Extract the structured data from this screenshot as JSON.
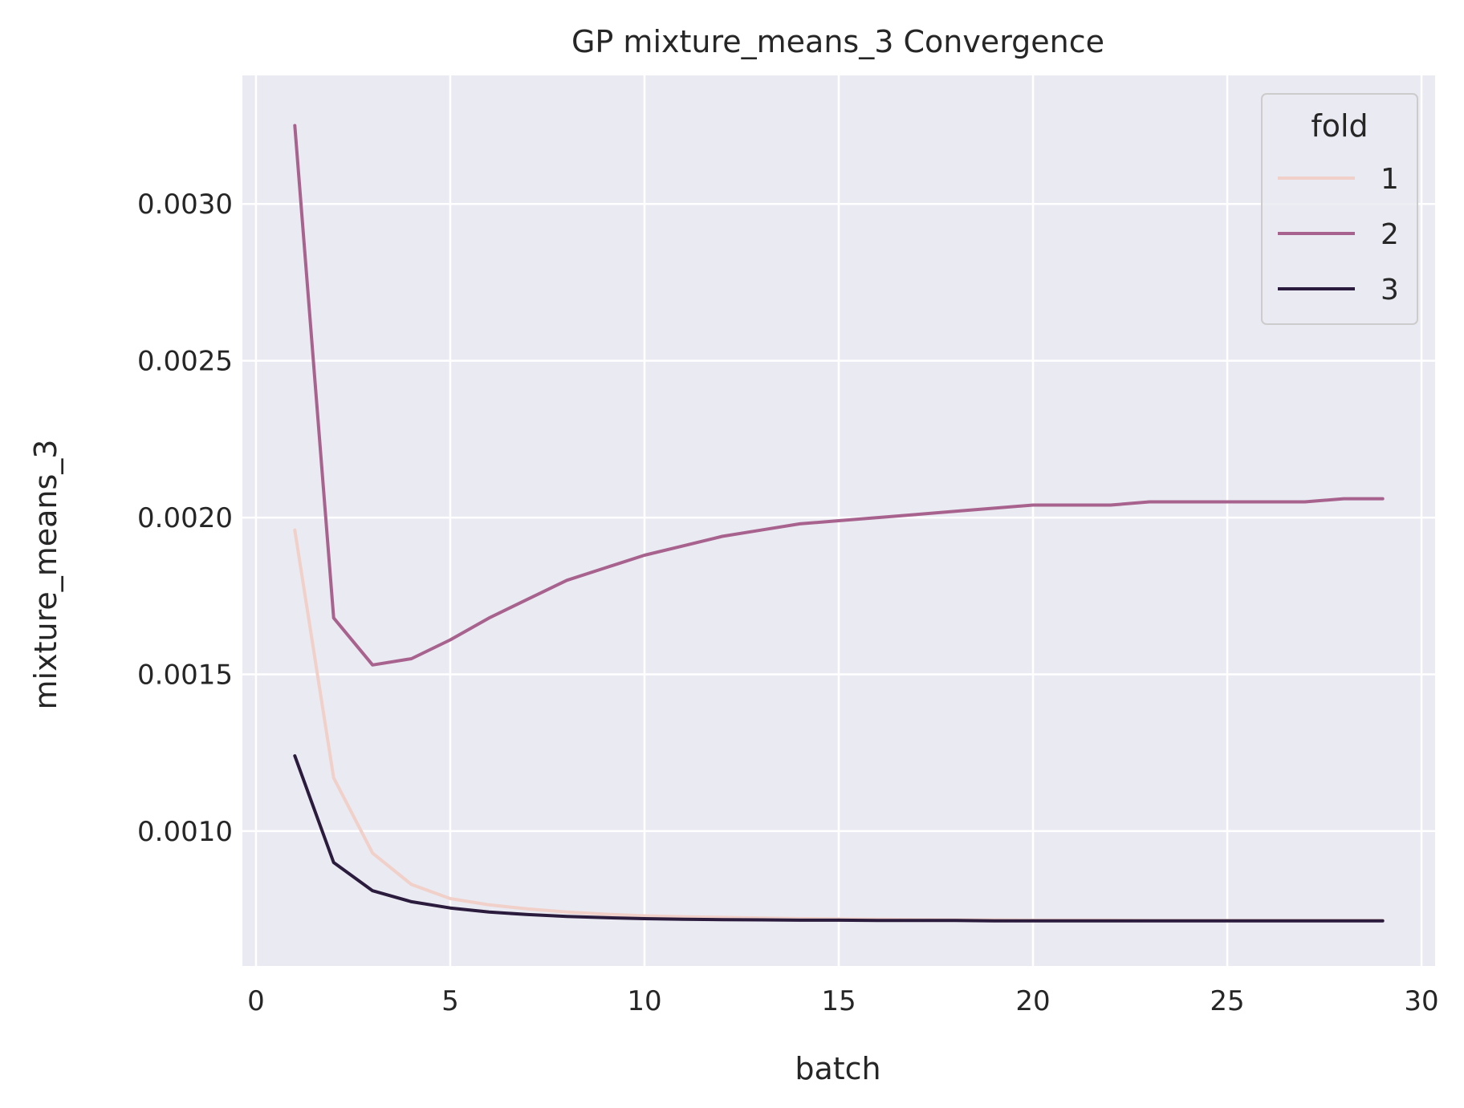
{
  "chart_data": {
    "type": "line",
    "title": "GP mixture_means_3 Convergence",
    "xlabel": "batch",
    "ylabel": "mixture_means_3",
    "xlim": [
      -0.35,
      30.35
    ],
    "ylim": [
      0.00057,
      0.00341
    ],
    "x_ticks": [
      0,
      5,
      10,
      15,
      20,
      25,
      30
    ],
    "y_ticks": [
      0.001,
      0.0015,
      0.002,
      0.0025,
      0.003
    ],
    "y_tick_labels": [
      "0.0010",
      "0.0015",
      "0.0020",
      "0.0025",
      "0.0030"
    ],
    "grid": true,
    "background_color": "#eaeaf2",
    "grid_color": "#ffffff",
    "legend": {
      "title": "fold",
      "placement": "top-right"
    },
    "x": [
      1,
      2,
      3,
      4,
      5,
      6,
      7,
      8,
      9,
      10,
      11,
      12,
      13,
      14,
      15,
      16,
      17,
      18,
      19,
      20,
      21,
      22,
      23,
      24,
      25,
      26,
      27,
      28,
      29
    ],
    "series": [
      {
        "name": "1",
        "color": "#f0d0c8",
        "values": [
          0.00196,
          0.00117,
          0.00093,
          0.00083,
          0.000785,
          0.000765,
          0.000752,
          0.000742,
          0.000735,
          0.00073,
          0.000727,
          0.000725,
          0.000723,
          0.000721,
          0.00072,
          0.000719,
          0.000718,
          0.000717,
          0.000717,
          0.000716,
          0.000716,
          0.000716,
          0.000715,
          0.000715,
          0.000715,
          0.000715,
          0.000715,
          0.000715,
          0.000715
        ]
      },
      {
        "name": "2",
        "color": "#a8628e",
        "values": [
          0.00325,
          0.00168,
          0.00153,
          0.00155,
          0.00161,
          0.00168,
          0.00174,
          0.0018,
          0.00184,
          0.00188,
          0.00191,
          0.00194,
          0.00196,
          0.00198,
          0.00199,
          0.002,
          0.00201,
          0.00202,
          0.00203,
          0.00204,
          0.00204,
          0.00204,
          0.00205,
          0.00205,
          0.00205,
          0.00205,
          0.00205,
          0.00206,
          0.00206
        ]
      },
      {
        "name": "3",
        "color": "#2b1b3d",
        "values": [
          0.00124,
          0.0009,
          0.00081,
          0.000775,
          0.000755,
          0.000742,
          0.000734,
          0.000728,
          0.000724,
          0.000721,
          0.000719,
          0.000718,
          0.000717,
          0.000716,
          0.000716,
          0.000715,
          0.000715,
          0.000715,
          0.000714,
          0.000714,
          0.000714,
          0.000714,
          0.000714,
          0.000714,
          0.000714,
          0.000714,
          0.000714,
          0.000714,
          0.000714
        ]
      }
    ]
  }
}
